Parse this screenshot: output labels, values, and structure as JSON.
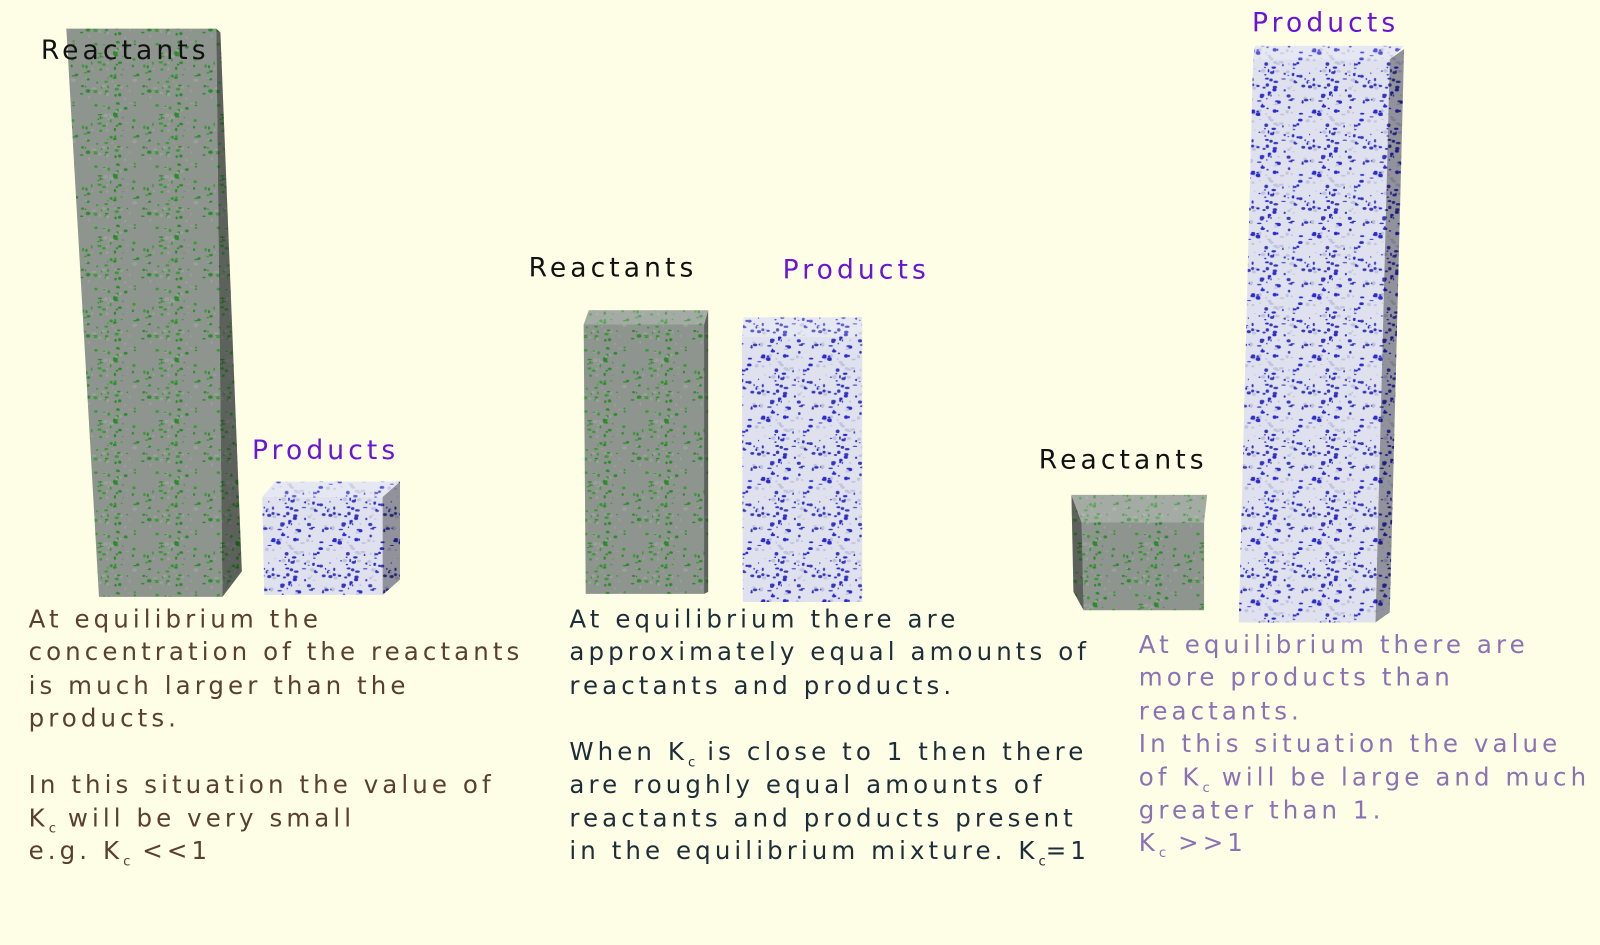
{
  "panels": [
    {
      "reactants_label": "Reactants",
      "products_label": "Products",
      "paragraphs": [
        [
          [
            {
              "text": "At equilibrium the"
            }
          ],
          [
            {
              "text": "concentration of the reactants"
            }
          ],
          [
            {
              "text": "is much larger than the"
            }
          ],
          [
            {
              "text": "products."
            }
          ]
        ],
        [
          [
            {
              "text": "In this situation the value of"
            }
          ],
          [
            {
              "text": "K"
            },
            {
              "subscript": "c"
            },
            {
              "text": " will be very small"
            }
          ],
          [
            {
              "text": "e.g. K"
            },
            {
              "subscript": "c"
            },
            {
              "text": " <<1"
            }
          ]
        ]
      ]
    },
    {
      "reactants_label": "Reactants",
      "products_label": "Products",
      "paragraphs": [
        [
          [
            {
              "text": "At equilibrium there are"
            }
          ],
          [
            {
              "text": "approximately equal amounts of"
            }
          ],
          [
            {
              "text": "reactants and products."
            }
          ]
        ],
        [
          [
            {
              "text": "When K"
            },
            {
              "subscript": "c"
            },
            {
              "text": " is close to 1 then there"
            }
          ],
          [
            {
              "text": "are roughly equal amounts of"
            }
          ],
          [
            {
              "text": "reactants and products present"
            }
          ],
          [
            {
              "text": "in the equilibrium mixture. K"
            },
            {
              "subscript": "c"
            },
            {
              "text": "=1"
            }
          ]
        ]
      ]
    },
    {
      "reactants_label": "Reactants",
      "products_label": "Products",
      "paragraphs": [
        [
          [
            {
              "text": "At equilibrium there are"
            }
          ],
          [
            {
              "text": "more products than"
            }
          ],
          [
            {
              "text": "reactants."
            }
          ]
        ],
        [
          [
            {
              "text": "In this situation the value"
            }
          ],
          [
            {
              "text": "of K"
            },
            {
              "subscript": "c"
            },
            {
              "text": " will be large and much"
            }
          ],
          [
            {
              "text": "greater than 1."
            }
          ],
          [
            {
              "text": "K"
            },
            {
              "subscript": "c"
            },
            {
              "text": " >>1"
            }
          ]
        ]
      ]
    }
  ]
}
